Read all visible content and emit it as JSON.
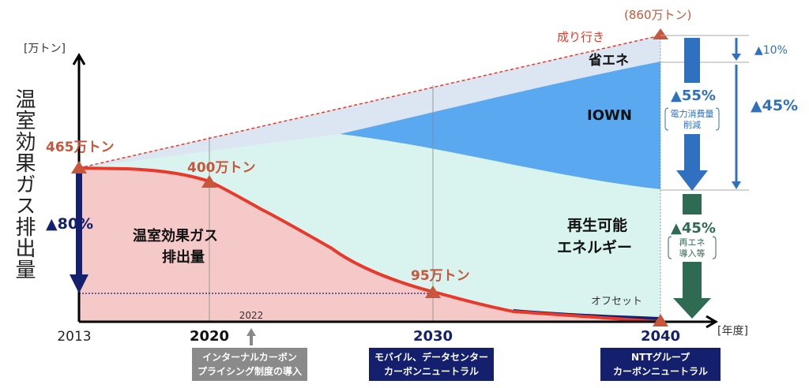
{
  "chart_data": {
    "type": "area",
    "title": "",
    "ylabel": "温室効果ガス排出量",
    "yunit": "[万トン]",
    "xunit": "[年度]",
    "x_ticks": [
      "2013",
      "2020",
      "2030",
      "2040"
    ],
    "marker_2022": "2022",
    "series": [
      {
        "name": "成り行き",
        "points": [
          [
            2013,
            465
          ],
          [
            2040,
            860
          ]
        ]
      },
      {
        "name": "温室効果ガス排出量",
        "points": [
          [
            2013,
            465
          ],
          [
            2020,
            400
          ],
          [
            2030,
            95
          ],
          [
            2040,
            0
          ]
        ]
      }
    ],
    "point_labels": {
      "p2013": "465万トン",
      "p2020": "400万トン",
      "p2030": "95万トン",
      "p2040": "(860万トン)"
    },
    "area_labels": {
      "bau": "成り行き",
      "savings": "省エネ",
      "iown": "IOWN",
      "renewable_1": "再生可能",
      "renewable_2": "エネルギー",
      "emissions_1": "温室効果ガス",
      "emissions_2": "排出量",
      "offset": "オフセット"
    },
    "reductions": {
      "left_total": "▲80%",
      "savings_pct": "▲10%",
      "iown_pct": "▲45%",
      "power_pct": "▲55%",
      "power_note_1": "電力消費量",
      "power_note_2": "削減",
      "renew_pct": "▲45%",
      "renew_note_1": "再エネ",
      "renew_note_2": "導入等"
    },
    "milestones": [
      {
        "line1": "インターナルカーボン",
        "line2": "プライシング制度の導入"
      },
      {
        "line1": "モバイル、データセンター",
        "line2": "カーボンニュートラル"
      },
      {
        "line1": "NTTグループ",
        "line2": "カーボンニュートラル"
      }
    ],
    "colors": {
      "emission": "#e8392a",
      "emission_fill": "#f6c9c9",
      "renew_fill": "#d9f4ef",
      "iown_fill": "#5aa9f0",
      "savings_fill": "#dce6f2",
      "navy": "#14206e",
      "blue": "#2f70c0",
      "green": "#2e6b52",
      "label_red": "#c9553a"
    }
  }
}
